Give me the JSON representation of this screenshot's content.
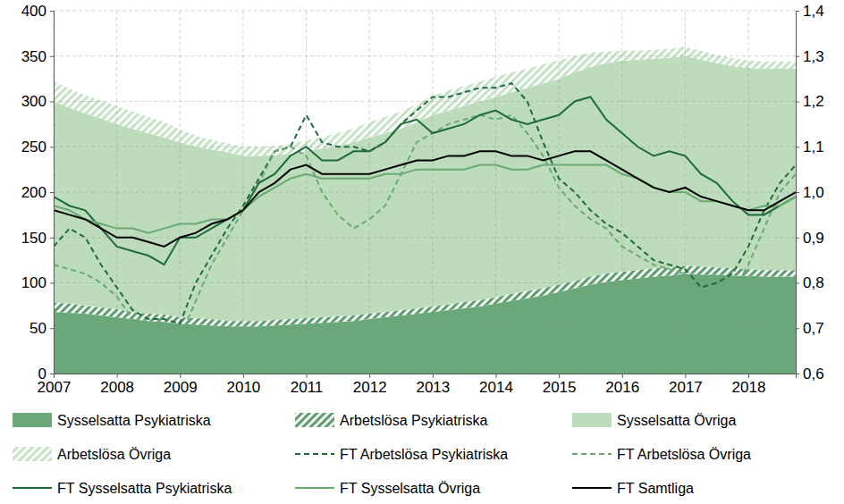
{
  "chart_data": {
    "type": "area",
    "stacked": true,
    "grid": true,
    "legend": "bottom",
    "x": [
      2007,
      2007.25,
      2007.5,
      2007.75,
      2008,
      2008.25,
      2008.5,
      2008.75,
      2009,
      2009.25,
      2009.5,
      2009.75,
      2010,
      2010.25,
      2010.5,
      2010.75,
      2011,
      2011.25,
      2011.5,
      2011.75,
      2012,
      2012.25,
      2012.5,
      2012.75,
      2013,
      2013.25,
      2013.5,
      2013.75,
      2014,
      2014.25,
      2014.5,
      2014.75,
      2015,
      2015.25,
      2015.5,
      2015.75,
      2016,
      2016.25,
      2016.5,
      2016.75,
      2017,
      2017.25,
      2017.5,
      2017.75,
      2018,
      2018.25,
      2018.5,
      2018.75
    ],
    "xlim": [
      2007,
      2018.75
    ],
    "xticks": [
      2007,
      2008,
      2009,
      2010,
      2011,
      2012,
      2013,
      2014,
      2015,
      2016,
      2017,
      2018
    ],
    "ylim": [
      0,
      400
    ],
    "yticks": [
      0,
      50,
      100,
      150,
      200,
      250,
      300,
      350,
      400
    ],
    "y2lim": [
      0.6,
      1.4
    ],
    "y2ticks": [
      {
        "value": 0.6,
        "label": "0,6"
      },
      {
        "value": 0.7,
        "label": "0,7"
      },
      {
        "value": 0.8,
        "label": "0,8"
      },
      {
        "value": 0.9,
        "label": "0,9"
      },
      {
        "value": 1.0,
        "label": "1,0"
      },
      {
        "value": 1.1,
        "label": "1,1"
      },
      {
        "value": 1.2,
        "label": "1,2"
      },
      {
        "value": 1.3,
        "label": "1,3"
      },
      {
        "value": 1.4,
        "label": "1,4"
      }
    ],
    "series": [
      {
        "name": "Sysselsatta Psykiatriska",
        "type": "area",
        "color": "#6aa87a",
        "values": [
          68,
          67,
          66,
          64,
          62,
          60,
          58,
          57,
          55,
          54,
          53,
          52,
          52,
          52,
          53,
          54,
          55,
          56,
          57,
          58,
          60,
          62,
          64,
          66,
          68,
          70,
          72,
          74,
          77,
          80,
          83,
          86,
          90,
          94,
          98,
          101,
          103,
          105,
          107,
          108,
          110,
          109,
          109,
          108,
          108,
          107,
          107,
          107
        ]
      },
      {
        "name": "Arbetslösa Psykiatriska",
        "type": "hatched",
        "color": "#5d9e6e",
        "values": [
          10,
          10,
          9,
          9,
          9,
          8,
          8,
          8,
          7,
          7,
          7,
          6,
          6,
          6,
          6,
          6,
          6,
          6,
          6,
          6,
          6,
          6,
          6,
          6,
          6,
          6,
          7,
          7,
          7,
          8,
          8,
          8,
          8,
          8,
          9,
          9,
          9,
          9,
          9,
          9,
          9,
          9,
          8,
          8,
          7,
          7,
          7,
          7
        ]
      },
      {
        "name": "Sysselsatta Övriga",
        "type": "area",
        "color": "#bcdcbc",
        "values": [
          222,
          216,
          212,
          208,
          204,
          202,
          199,
          195,
          193,
          189,
          187,
          186,
          182,
          182,
          182,
          182,
          184,
          186,
          188,
          191,
          194,
          197,
          200,
          205,
          211,
          214,
          216,
          219,
          221,
          222,
          224,
          226,
          227,
          230,
          231,
          232,
          233,
          232,
          231,
          231,
          231,
          228,
          225,
          223,
          222,
          222,
          222,
          222
        ]
      },
      {
        "name": "Arbetslösa Övriga",
        "type": "hatched",
        "color": "#c6e3c6",
        "values": [
          22,
          21,
          20,
          20,
          20,
          19,
          18,
          17,
          14,
          12,
          11,
          10,
          10,
          10,
          10,
          11,
          12,
          13,
          14,
          15,
          17,
          18,
          19,
          20,
          21,
          22,
          22,
          22,
          22,
          22,
          21,
          21,
          20,
          18,
          16,
          13,
          11,
          10,
          10,
          10,
          10,
          10,
          9,
          9,
          8,
          8,
          8,
          8
        ]
      },
      {
        "name": "FT Arbetslösa Psykiatriska",
        "type": "line",
        "axis": "y2",
        "line_style": "dashed",
        "color": "#1f6b3d",
        "values": [
          0.88,
          0.92,
          0.9,
          0.84,
          0.79,
          0.74,
          0.72,
          0.72,
          0.71,
          0.8,
          0.86,
          0.92,
          0.97,
          1.03,
          1.09,
          1.1,
          1.17,
          1.11,
          1.1,
          1.1,
          1.09,
          1.11,
          1.15,
          1.18,
          1.21,
          1.21,
          1.22,
          1.23,
          1.23,
          1.24,
          1.2,
          1.11,
          1.03,
          1.0,
          0.96,
          0.93,
          0.91,
          0.88,
          0.85,
          0.84,
          0.83,
          0.79,
          0.8,
          0.82,
          0.88,
          0.96,
          1.02,
          1.06
        ]
      },
      {
        "name": "FT Arbetslösa Övriga",
        "type": "line",
        "axis": "y2",
        "line_style": "dashed",
        "color": "#6aaa72",
        "values": [
          0.84,
          0.83,
          0.82,
          0.8,
          0.77,
          0.72,
          0.7,
          0.69,
          0.68,
          0.76,
          0.84,
          0.9,
          0.96,
          1.02,
          1.09,
          1.1,
          1.08,
          1.0,
          0.95,
          0.92,
          0.94,
          0.97,
          1.04,
          1.11,
          1.13,
          1.15,
          1.16,
          1.17,
          1.16,
          1.17,
          1.13,
          1.08,
          1.01,
          0.97,
          0.94,
          0.92,
          0.88,
          0.86,
          0.84,
          0.83,
          0.82,
          0.76,
          0.75,
          0.78,
          0.84,
          0.92,
          1.0,
          1.04
        ]
      },
      {
        "name": "FT Sysselsatta Psykiatriska",
        "type": "line",
        "axis": "y2",
        "line_style": "solid",
        "color": "#1f6b3d",
        "values": [
          0.99,
          0.97,
          0.96,
          0.92,
          0.88,
          0.87,
          0.86,
          0.84,
          0.9,
          0.9,
          0.92,
          0.94,
          0.96,
          1.02,
          1.04,
          1.08,
          1.1,
          1.07,
          1.07,
          1.09,
          1.09,
          1.11,
          1.15,
          1.16,
          1.13,
          1.14,
          1.15,
          1.17,
          1.18,
          1.16,
          1.15,
          1.16,
          1.17,
          1.2,
          1.21,
          1.16,
          1.13,
          1.1,
          1.08,
          1.09,
          1.08,
          1.04,
          1.02,
          0.98,
          0.95,
          0.95,
          0.97,
          0.99
        ]
      },
      {
        "name": "FT Sysselsatta Övriga",
        "type": "line",
        "axis": "y2",
        "line_style": "solid",
        "color": "#6aaa72",
        "values": [
          0.97,
          0.96,
          0.94,
          0.93,
          0.92,
          0.92,
          0.91,
          0.92,
          0.93,
          0.93,
          0.94,
          0.94,
          0.96,
          0.99,
          1.01,
          1.03,
          1.04,
          1.03,
          1.03,
          1.03,
          1.03,
          1.04,
          1.04,
          1.05,
          1.05,
          1.05,
          1.05,
          1.06,
          1.06,
          1.05,
          1.05,
          1.06,
          1.06,
          1.06,
          1.06,
          1.06,
          1.04,
          1.03,
          1.01,
          1.0,
          1.0,
          0.98,
          0.98,
          0.97,
          0.96,
          0.97,
          0.97,
          0.99
        ]
      },
      {
        "name": "FT Samtliga",
        "type": "line",
        "axis": "y2",
        "line_style": "solid",
        "color": "#000000",
        "values": [
          0.96,
          0.95,
          0.94,
          0.92,
          0.9,
          0.9,
          0.89,
          0.88,
          0.9,
          0.91,
          0.93,
          0.94,
          0.96,
          1.0,
          1.02,
          1.05,
          1.06,
          1.04,
          1.04,
          1.04,
          1.04,
          1.05,
          1.06,
          1.07,
          1.07,
          1.08,
          1.08,
          1.09,
          1.09,
          1.08,
          1.08,
          1.07,
          1.08,
          1.09,
          1.09,
          1.07,
          1.05,
          1.03,
          1.01,
          1.0,
          1.01,
          0.99,
          0.98,
          0.97,
          0.96,
          0.96,
          0.98,
          1.0
        ]
      }
    ]
  }
}
